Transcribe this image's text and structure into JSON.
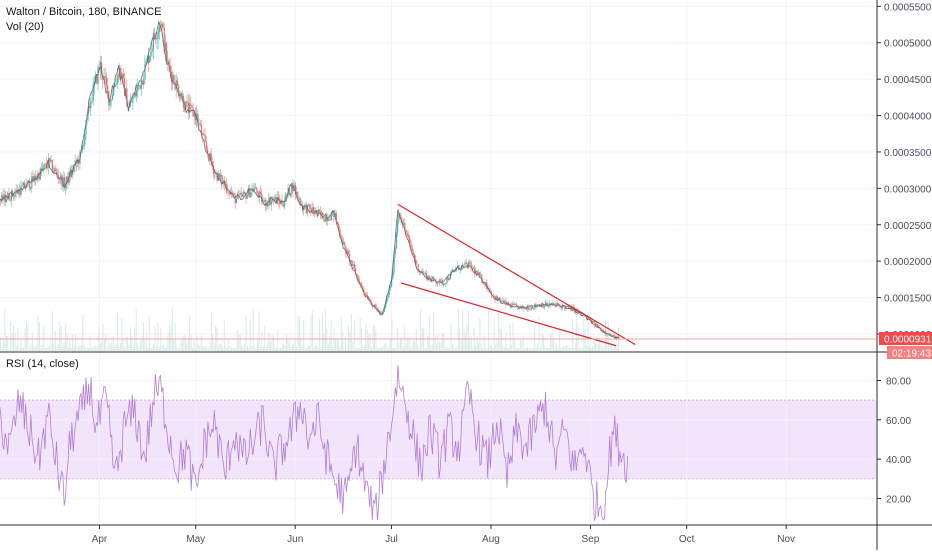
{
  "chart_data": {
    "type": "candlestick",
    "symbol_title": "Walton / Bitcoin, 180, BINANCE",
    "volume_label": "Vol (20)",
    "rsi_label": "RSI (14, close)",
    "price_axis": {
      "ticks": [
        0.00055,
        0.0005,
        0.00045,
        0.0004,
        0.00035,
        0.0003,
        0.00025,
        0.0002,
        0.00015,
        0.0001
      ],
      "tick_labels": [
        "0.0005500",
        "0.0005000",
        "0.0004500",
        "0.0004000",
        "0.0003500",
        "0.0003000",
        "0.0002500",
        "0.0002000",
        "0.0001500",
        "0.0001000"
      ],
      "ylim": [
        7.66e-05,
        0.0005587
      ]
    },
    "rsi_axis": {
      "ticks": [
        80,
        60,
        40,
        20
      ],
      "tick_labels": [
        "80.00",
        "60.00",
        "40.00",
        "20.00"
      ],
      "ylim": [
        7,
        94
      ],
      "band": [
        30,
        70
      ]
    },
    "x_axis": {
      "tick_labels": [
        "Apr",
        "May",
        "Jun",
        "Jul",
        "Aug",
        "Sep",
        "Oct",
        "Nov"
      ],
      "tick_days": [
        31,
        61,
        92,
        122,
        153,
        184,
        214,
        245
      ],
      "xlim": [
        0,
        273
      ]
    },
    "price_path": [
      [
        0,
        0.000283
      ],
      [
        5,
        0.000295
      ],
      [
        10,
        0.00031
      ],
      [
        15,
        0.000335
      ],
      [
        20,
        0.000305
      ],
      [
        25,
        0.000345
      ],
      [
        28,
        0.00042
      ],
      [
        31,
        0.00047
      ],
      [
        34,
        0.00042
      ],
      [
        37,
        0.000465
      ],
      [
        40,
        0.00041
      ],
      [
        44,
        0.00045
      ],
      [
        48,
        0.00051
      ],
      [
        50,
        0.00053
      ],
      [
        52,
        0.00047
      ],
      [
        55,
        0.00044
      ],
      [
        58,
        0.00041
      ],
      [
        61,
        0.0004
      ],
      [
        64,
        0.000355
      ],
      [
        67,
        0.00032
      ],
      [
        70,
        0.000305
      ],
      [
        73,
        0.000285
      ],
      [
        76,
        0.00029
      ],
      [
        79,
        0.0003
      ],
      [
        82,
        0.00028
      ],
      [
        85,
        0.000285
      ],
      [
        88,
        0.00028
      ],
      [
        91,
        0.000305
      ],
      [
        94,
        0.000275
      ],
      [
        97,
        0.00027
      ],
      [
        101,
        0.00026
      ],
      [
        104,
        0.000265
      ],
      [
        107,
        0.00022
      ],
      [
        110,
        0.00019
      ],
      [
        113,
        0.00016
      ],
      [
        116,
        0.00014
      ],
      [
        119,
        0.000125
      ],
      [
        122,
        0.000175
      ],
      [
        124,
        0.00027
      ],
      [
        127,
        0.00023
      ],
      [
        130,
        0.00019
      ],
      [
        134,
        0.000175
      ],
      [
        138,
        0.00017
      ],
      [
        142,
        0.00019
      ],
      [
        146,
        0.000195
      ],
      [
        150,
        0.000175
      ],
      [
        154,
        0.00015
      ],
      [
        158,
        0.00014
      ],
      [
        163,
        0.000135
      ],
      [
        168,
        0.00014
      ],
      [
        173,
        0.00014
      ],
      [
        178,
        0.000135
      ],
      [
        182,
        0.000125
      ],
      [
        186,
        0.00011
      ],
      [
        190,
        9.8e-05
      ],
      [
        193,
        9.3e-05
      ]
    ],
    "last_price_label": "0.0000931",
    "countdown_label": "02:19:43",
    "last_price": 9.31e-05,
    "rsi_path": [
      [
        0,
        60
      ],
      [
        3,
        45
      ],
      [
        6,
        70
      ],
      [
        9,
        55
      ],
      [
        12,
        40
      ],
      [
        15,
        62
      ],
      [
        18,
        35
      ],
      [
        20,
        20
      ],
      [
        22,
        50
      ],
      [
        25,
        62
      ],
      [
        28,
        78
      ],
      [
        30,
        55
      ],
      [
        33,
        70
      ],
      [
        36,
        30
      ],
      [
        39,
        58
      ],
      [
        42,
        64
      ],
      [
        45,
        40
      ],
      [
        48,
        72
      ],
      [
        50,
        76
      ],
      [
        52,
        58
      ],
      [
        55,
        35
      ],
      [
        58,
        45
      ],
      [
        61,
        22
      ],
      [
        64,
        50
      ],
      [
        67,
        58
      ],
      [
        70,
        32
      ],
      [
        73,
        54
      ],
      [
        76,
        40
      ],
      [
        79,
        48
      ],
      [
        82,
        60
      ],
      [
        85,
        35
      ],
      [
        88,
        45
      ],
      [
        91,
        55
      ],
      [
        94,
        70
      ],
      [
        96,
        50
      ],
      [
        99,
        60
      ],
      [
        102,
        40
      ],
      [
        105,
        26
      ],
      [
        108,
        20
      ],
      [
        111,
        48
      ],
      [
        114,
        25
      ],
      [
        117,
        10
      ],
      [
        120,
        40
      ],
      [
        122,
        60
      ],
      [
        124,
        84
      ],
      [
        126,
        70
      ],
      [
        128,
        58
      ],
      [
        131,
        35
      ],
      [
        134,
        55
      ],
      [
        137,
        40
      ],
      [
        140,
        55
      ],
      [
        143,
        45
      ],
      [
        146,
        74
      ],
      [
        149,
        50
      ],
      [
        152,
        38
      ],
      [
        155,
        60
      ],
      [
        158,
        30
      ],
      [
        161,
        55
      ],
      [
        164,
        45
      ],
      [
        167,
        58
      ],
      [
        170,
        68
      ],
      [
        173,
        40
      ],
      [
        176,
        55
      ],
      [
        179,
        35
      ],
      [
        182,
        48
      ],
      [
        185,
        20
      ],
      [
        188,
        15
      ],
      [
        191,
        55
      ],
      [
        194,
        42
      ],
      [
        196,
        35
      ]
    ],
    "wedge_lines": [
      {
        "p1": [
          124,
          0.000278
        ],
        "p2": [
          198,
          8.53e-05
        ]
      },
      {
        "p1": [
          125,
          0.00017
        ],
        "p2": [
          192,
          8.38e-05
        ]
      }
    ],
    "colors": {
      "up": "#26a69a",
      "down": "#ef5350",
      "price_line": "#6b6b6b",
      "wedge": "#e0242a",
      "rsi_line": "#b27ed3",
      "rsi_band": "#f2e4fb",
      "last_price_badge": "#f44949",
      "grid": "#f0f3fa",
      "axis_text": "#4a4f5c",
      "volume": "#cfe5dd"
    },
    "grid": true
  }
}
